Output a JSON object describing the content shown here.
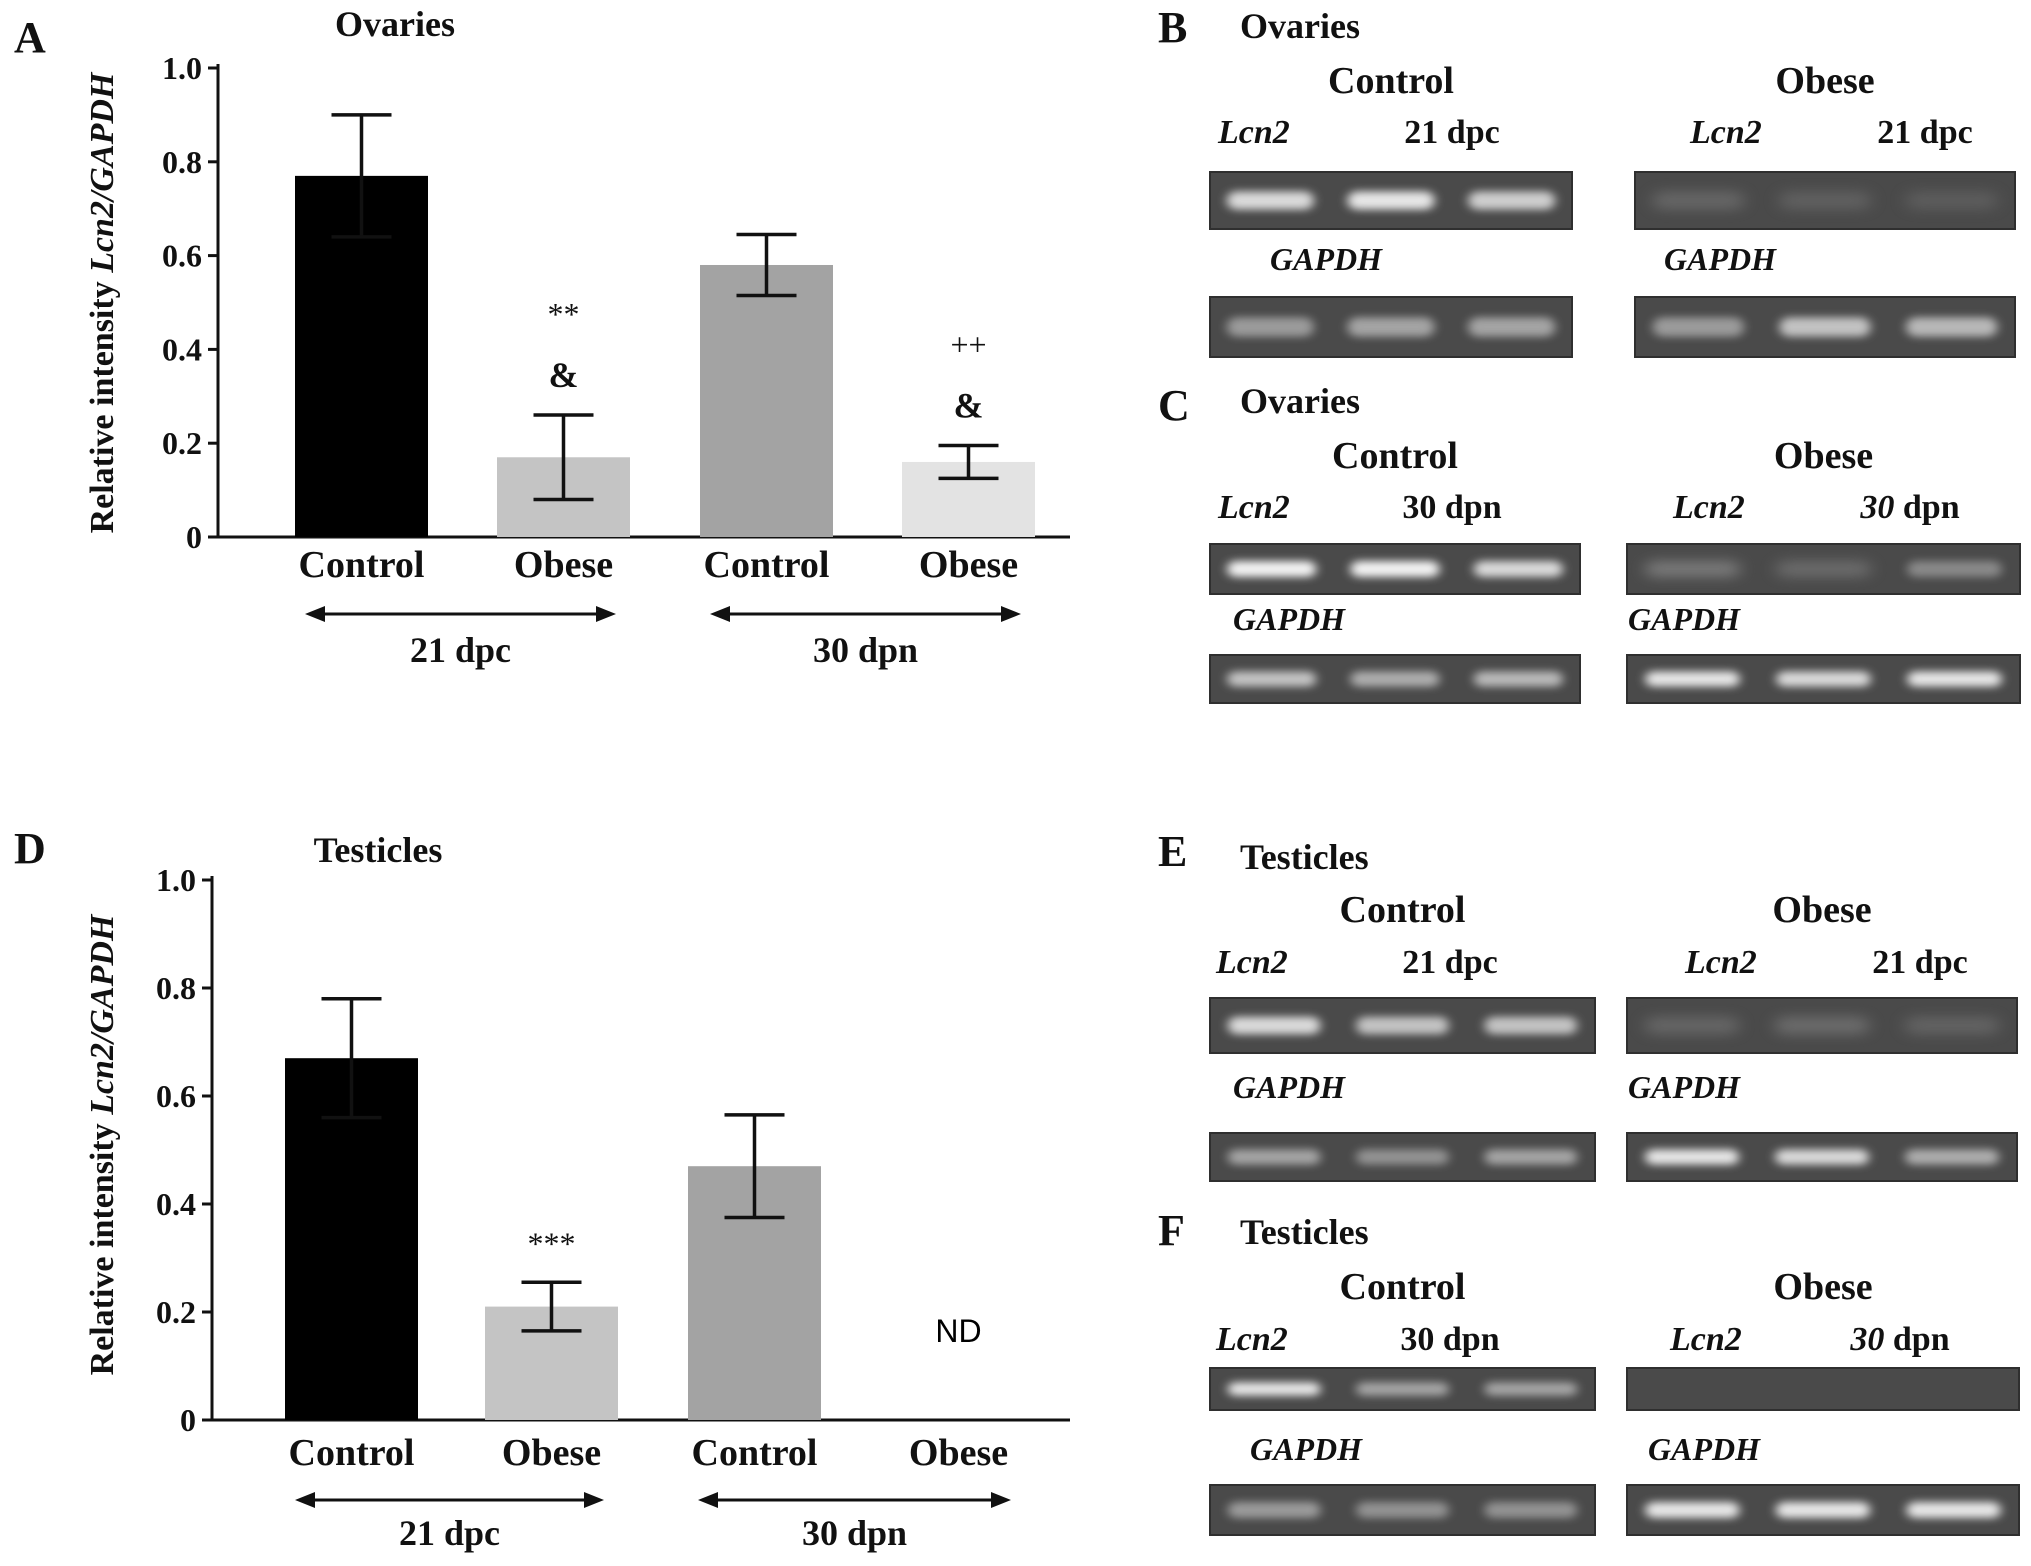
{
  "chart_data": [
    {
      "type": "bar",
      "panel_letter": "A",
      "title": "Ovaries",
      "ylabel_prefix": "Relative intensity ",
      "ylabel_italic": "Lcn2/GAPDH",
      "ylim": [
        0,
        1.0
      ],
      "yticks": [
        "0",
        "0.2",
        "0.4",
        "0.6",
        "0.8",
        "1.0"
      ],
      "categories": [
        "Control",
        "Obese",
        "Control",
        "Obese"
      ],
      "values": [
        0.77,
        0.17,
        0.58,
        0.16
      ],
      "errors": [
        0.13,
        0.09,
        0.065,
        0.035
      ],
      "bar_colors": [
        "#000000",
        "#c4c4c4",
        "#a3a3a3",
        "#e3e3e3"
      ],
      "annotations": [
        {
          "bar": 1,
          "lines": [
            "**",
            "&"
          ]
        },
        {
          "bar": 3,
          "lines": [
            "++",
            "&"
          ]
        }
      ],
      "groups": [
        {
          "label": "21 dpc",
          "bars": [
            0,
            1
          ]
        },
        {
          "label": "30 dpn",
          "bars": [
            2,
            3
          ]
        }
      ]
    },
    {
      "type": "bar",
      "panel_letter": "D",
      "title": "Testicles",
      "ylabel_prefix": "Relative intensity ",
      "ylabel_italic": "Lcn2/GAPDH",
      "ylim": [
        0,
        1.0
      ],
      "yticks": [
        "0",
        "0.2",
        "0.4",
        "0.6",
        "0.8",
        "1.0"
      ],
      "categories": [
        "Control",
        "Obese",
        "Control",
        "Obese"
      ],
      "values": [
        0.67,
        0.21,
        0.47,
        null
      ],
      "errors": [
        0.11,
        0.045,
        0.095,
        null
      ],
      "bar_colors": [
        "#000000",
        "#c4c4c4",
        "#a3a3a3",
        "#e3e3e3"
      ],
      "annotations": [
        {
          "bar": 1,
          "lines": [
            "***"
          ]
        },
        {
          "bar": 3,
          "lines": [
            "ND"
          ]
        }
      ],
      "groups": [
        {
          "label": "21 dpc",
          "bars": [
            0,
            1
          ]
        },
        {
          "label": "30 dpn",
          "bars": [
            2,
            3
          ]
        }
      ]
    }
  ],
  "gels": [
    {
      "letter": "B",
      "tissue": "Ovaries",
      "left": {
        "group": "Control",
        "gene": "Lcn2",
        "stage_num": "21",
        "stage_unit": "dpc",
        "lcn2_bands": [
          0.85,
          0.9,
          0.8
        ],
        "gapdh_label": "GAPDH",
        "gapdh_bands": [
          0.55,
          0.6,
          0.6
        ]
      },
      "right": {
        "group": "Obese",
        "gene": "Lcn2",
        "stage_num": "21",
        "stage_unit": "dpc",
        "lcn2_bands": [
          0.2,
          0.15,
          0.12
        ],
        "gapdh_label": "GAPDH",
        "gapdh_bands": [
          0.55,
          0.75,
          0.7
        ]
      }
    },
    {
      "letter": "C",
      "tissue": "Ovaries",
      "left": {
        "group": "Control",
        "gene": "Lcn2",
        "stage_num": "30",
        "stage_unit": "dpn",
        "lcn2_bands": [
          0.95,
          0.95,
          0.85
        ],
        "gapdh_label": "GAPDH",
        "gapdh_bands": [
          0.75,
          0.65,
          0.7
        ]
      },
      "right": {
        "group": "Obese",
        "gene": "Lcn2",
        "stage_num": "30",
        "stage_unit": "dpn",
        "lcn2_bands": [
          0.35,
          0.25,
          0.45
        ],
        "gapdh_label": "GAPDH",
        "gapdh_bands": [
          0.9,
          0.85,
          0.9
        ]
      }
    },
    {
      "letter": "E",
      "tissue": "Testicles",
      "left": {
        "group": "Control",
        "gene": "Lcn2",
        "stage_num": "21",
        "stage_unit": "dpc",
        "lcn2_bands": [
          0.85,
          0.75,
          0.75
        ],
        "gapdh_label": "GAPDH",
        "gapdh_bands": [
          0.6,
          0.5,
          0.6
        ]
      },
      "right": {
        "group": "Obese",
        "gene": "Lcn2",
        "stage_num": "21",
        "stage_unit": "dpc",
        "lcn2_bands": [
          0.2,
          0.25,
          0.18
        ],
        "gapdh_label": "GAPDH",
        "gapdh_bands": [
          0.9,
          0.85,
          0.65
        ]
      }
    },
    {
      "letter": "F",
      "tissue": "Testicles",
      "left": {
        "group": "Control",
        "gene": "Lcn2",
        "stage_num": "30",
        "stage_unit": "dpn",
        "lcn2_bands": [
          0.9,
          0.6,
          0.6
        ],
        "gapdh_label": "GAPDH",
        "gapdh_bands": [
          0.55,
          0.5,
          0.5
        ]
      },
      "right": {
        "group": "Obese",
        "gene": "Lcn2",
        "stage_num": "30",
        "stage_unit": "dpn",
        "lcn2_bands": [
          0.0,
          0.0,
          0.0
        ],
        "gapdh_label": "GAPDH",
        "gapdh_bands": [
          0.9,
          0.9,
          0.9
        ]
      }
    }
  ]
}
